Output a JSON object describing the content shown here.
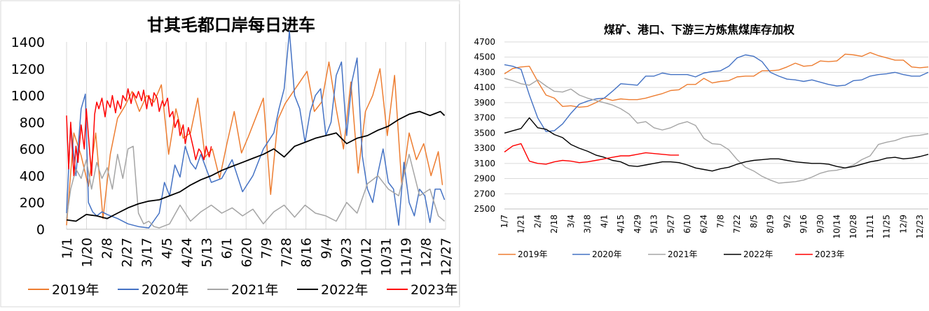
{
  "chart_data": [
    {
      "type": "line",
      "title": "甘其毛都口岸每日进车",
      "xlabel": "",
      "ylabel": "",
      "ylim": [
        0,
        1400
      ],
      "yticks": [
        0,
        200,
        400,
        600,
        800,
        1000,
        1200,
        1400
      ],
      "xticks": [
        "1/1",
        "1/20",
        "2/8",
        "2/27",
        "3/17",
        "4/5",
        "4/24",
        "5/13",
        "6/1",
        "6/20",
        "7/9",
        "7/28",
        "8/16",
        "9/4",
        "9/23",
        "10/12",
        "10/31",
        "11/19",
        "12/8",
        "12/27"
      ],
      "grid": "vertical",
      "legend": "bottom",
      "series": [
        {
          "name": "2019年",
          "color": "#ED7D31",
          "x": [
            1,
            8,
            15,
            22,
            29,
            36,
            43,
            50,
            57,
            64,
            71,
            78,
            85,
            92,
            99,
            106,
            113,
            120,
            127,
            134,
            141,
            148,
            155,
            162,
            169,
            176,
            183,
            190,
            197,
            204,
            211,
            218,
            225,
            232,
            239,
            246,
            253,
            260,
            267,
            274,
            281,
            288,
            295,
            302,
            309,
            316,
            323,
            330,
            337,
            344,
            351,
            358,
            362
          ],
          "values": [
            30,
            720,
            550,
            320,
            720,
            80,
            560,
            830,
            920,
            1030,
            880,
            1000,
            950,
            1080,
            560,
            900,
            680,
            720,
            980,
            540,
            600,
            380,
            640,
            880,
            570,
            700,
            840,
            980,
            260,
            820,
            940,
            1020,
            1100,
            1180,
            880,
            950,
            1250,
            900,
            600,
            1100,
            420,
            880,
            1000,
            1200,
            700,
            1150,
            320,
            720,
            520,
            640,
            400,
            580,
            330
          ]
        },
        {
          "name": "2020年",
          "color": "#4472C4",
          "x": [
            1,
            5,
            10,
            15,
            19,
            22,
            26,
            30,
            35,
            40,
            50,
            60,
            70,
            80,
            90,
            95,
            100,
            105,
            110,
            115,
            120,
            125,
            130,
            140,
            150,
            160,
            170,
            180,
            190,
            200,
            205,
            210,
            215,
            220,
            225,
            230,
            235,
            240,
            245,
            250,
            255,
            260,
            265,
            270,
            275,
            280,
            285,
            290,
            295,
            300,
            305,
            310,
            315,
            320,
            325,
            330,
            335,
            340,
            345,
            350,
            355,
            360,
            364
          ],
          "values": [
            120,
            780,
            400,
            900,
            1010,
            200,
            130,
            100,
            130,
            110,
            80,
            40,
            20,
            10,
            120,
            350,
            250,
            480,
            390,
            620,
            500,
            450,
            560,
            350,
            380,
            520,
            280,
            400,
            600,
            720,
            900,
            1050,
            1480,
            1000,
            900,
            650,
            880,
            1000,
            1050,
            700,
            800,
            1150,
            1250,
            700,
            1100,
            1280,
            550,
            300,
            200,
            420,
            600,
            350,
            300,
            30,
            500,
            200,
            100,
            300,
            250,
            50,
            300,
            300,
            220
          ]
        },
        {
          "name": "2021年",
          "color": "#A5A5A5",
          "x": [
            1,
            5,
            10,
            15,
            20,
            25,
            30,
            35,
            40,
            45,
            50,
            55,
            60,
            65,
            70,
            75,
            80,
            85,
            90,
            100,
            110,
            120,
            130,
            140,
            150,
            160,
            170,
            180,
            190,
            200,
            210,
            220,
            230,
            240,
            250,
            260,
            270,
            280,
            290,
            300,
            310,
            320,
            330,
            340,
            350,
            358,
            364
          ],
          "values": [
            80,
            300,
            450,
            380,
            520,
            300,
            500,
            380,
            460,
            300,
            560,
            380,
            600,
            620,
            120,
            40,
            60,
            20,
            10,
            40,
            180,
            60,
            130,
            180,
            120,
            160,
            100,
            150,
            40,
            130,
            180,
            90,
            180,
            120,
            100,
            60,
            200,
            120,
            340,
            400,
            300,
            250,
            560,
            250,
            300,
            100,
            60
          ]
        },
        {
          "name": "2022年",
          "color": "#000000",
          "x": [
            1,
            10,
            20,
            30,
            40,
            50,
            60,
            70,
            80,
            90,
            100,
            110,
            120,
            130,
            140,
            150,
            160,
            170,
            180,
            190,
            200,
            210,
            220,
            230,
            240,
            250,
            260,
            270,
            280,
            290,
            300,
            310,
            320,
            330,
            340,
            350,
            360,
            364
          ],
          "values": [
            70,
            60,
            110,
            100,
            80,
            120,
            160,
            190,
            210,
            220,
            250,
            280,
            330,
            370,
            400,
            440,
            470,
            500,
            530,
            560,
            600,
            540,
            620,
            650,
            680,
            700,
            720,
            640,
            680,
            700,
            740,
            770,
            820,
            860,
            880,
            850,
            880,
            850
          ]
        },
        {
          "name": "2023年",
          "color": "#FF0000",
          "x": [
            1,
            3,
            5,
            8,
            10,
            12,
            15,
            18,
            20,
            22,
            25,
            28,
            30,
            32,
            35,
            38,
            40,
            43,
            45,
            48,
            50,
            53,
            55,
            58,
            60,
            63,
            65,
            68,
            70,
            73,
            75,
            78,
            80,
            83,
            85,
            88,
            90,
            93,
            95,
            98,
            100,
            103,
            105,
            108,
            110,
            113,
            115,
            118,
            120,
            123,
            125,
            128,
            130,
            133,
            135,
            138,
            140
          ],
          "values": [
            850,
            450,
            800,
            400,
            620,
            500,
            780,
            600,
            900,
            700,
            400,
            860,
            950,
            900,
            980,
            840,
            960,
            910,
            1000,
            870,
            960,
            900,
            1000,
            960,
            1050,
            940,
            1020,
            980,
            1030,
            960,
            1040,
            900,
            1000,
            920,
            1020,
            980,
            880,
            960,
            920,
            980,
            840,
            880,
            760,
            820,
            700,
            780,
            640,
            760,
            700,
            600,
            520,
            600,
            580,
            520,
            620,
            540,
            620
          ]
        }
      ]
    },
    {
      "type": "line",
      "title": "煤矿、港口、下游三方炼焦煤库存加权",
      "xlabel": "",
      "ylabel": "",
      "ylim": [
        2500,
        4700
      ],
      "yticks": [
        2500,
        2700,
        2900,
        3100,
        3300,
        3500,
        3700,
        3900,
        4100,
        4300,
        4500,
        4700
      ],
      "xticks": [
        "1/7",
        "1/21",
        "2/4",
        "2/18",
        "3/4",
        "3/18",
        "4/1",
        "4/15",
        "4/29",
        "5/13",
        "5/27",
        "6/10",
        "6/24",
        "7/8",
        "7/22",
        "8/5",
        "8/19",
        "9/2",
        "9/16",
        "9/30",
        "10/14",
        "10/28",
        "11/11",
        "11/25",
        "12/9",
        "12/23"
      ],
      "grid": "horizontal",
      "legend": "bottom",
      "series": [
        {
          "name": "2019年",
          "color": "#ED7D31",
          "x": [
            0,
            1,
            2,
            3,
            4,
            5,
            6,
            7,
            8,
            9,
            10,
            11,
            12,
            13,
            14,
            15,
            16,
            17,
            18,
            19,
            20,
            21,
            22,
            23,
            24,
            25,
            26,
            27,
            28,
            29,
            30,
            31,
            32,
            33,
            34,
            35,
            36,
            37,
            38,
            39,
            40,
            41,
            42,
            43,
            44,
            45,
            46,
            47,
            48,
            49,
            50,
            51
          ],
          "values": [
            4280,
            4350,
            4370,
            4380,
            4180,
            4000,
            3960,
            3850,
            3860,
            3840,
            3850,
            3900,
            3960,
            3930,
            3950,
            3940,
            3940,
            3960,
            3990,
            4020,
            4060,
            4070,
            4140,
            4140,
            4220,
            4160,
            4180,
            4190,
            4240,
            4250,
            4250,
            4320,
            4320,
            4330,
            4370,
            4420,
            4380,
            4390,
            4450,
            4440,
            4450,
            4540,
            4530,
            4510,
            4560,
            4520,
            4490,
            4460,
            4460,
            4370,
            4360,
            4370
          ]
        },
        {
          "name": "2020年",
          "color": "#4472C4",
          "x": [
            0,
            1,
            2,
            3,
            4,
            5,
            6,
            7,
            8,
            9,
            10,
            11,
            12,
            13,
            14,
            15,
            16,
            17,
            18,
            19,
            20,
            21,
            22,
            23,
            24,
            25,
            26,
            27,
            28,
            29,
            30,
            31,
            32,
            33,
            34,
            35,
            36,
            37,
            38,
            39,
            40,
            41,
            42,
            43,
            44,
            45,
            46,
            47,
            48,
            49,
            50,
            51
          ],
          "values": [
            4400,
            4380,
            4340,
            4000,
            3700,
            3520,
            3530,
            3620,
            3760,
            3880,
            3920,
            3950,
            3960,
            4050,
            4150,
            4140,
            4130,
            4250,
            4250,
            4290,
            4270,
            4270,
            4270,
            4240,
            4290,
            4310,
            4320,
            4380,
            4490,
            4530,
            4510,
            4440,
            4300,
            4250,
            4210,
            4200,
            4180,
            4200,
            4170,
            4140,
            4120,
            4130,
            4190,
            4200,
            4250,
            4270,
            4280,
            4300,
            4270,
            4250,
            4250,
            4300
          ]
        },
        {
          "name": "2021年",
          "color": "#A5A5A5",
          "x": [
            0,
            1,
            2,
            3,
            4,
            5,
            6,
            7,
            8,
            9,
            10,
            11,
            12,
            13,
            14,
            15,
            16,
            17,
            18,
            19,
            20,
            21,
            22,
            23,
            24,
            25,
            26,
            27,
            28,
            29,
            30,
            31,
            32,
            33,
            34,
            35,
            36,
            37,
            38,
            39,
            40,
            41,
            42,
            43,
            44,
            45,
            46,
            47,
            48,
            49,
            50,
            51
          ],
          "values": [
            4220,
            4190,
            4150,
            4130,
            4200,
            4120,
            4050,
            4040,
            4080,
            4000,
            3960,
            3930,
            3900,
            3870,
            3820,
            3750,
            3630,
            3650,
            3570,
            3540,
            3570,
            3620,
            3650,
            3600,
            3430,
            3360,
            3350,
            3280,
            3150,
            3050,
            3000,
            2930,
            2880,
            2840,
            2850,
            2860,
            2880,
            2920,
            2970,
            3000,
            3010,
            3040,
            3080,
            3150,
            3200,
            3350,
            3380,
            3400,
            3440,
            3460,
            3470,
            3490
          ]
        },
        {
          "name": "2022年",
          "color": "#000000",
          "x": [
            0,
            1,
            2,
            3,
            4,
            5,
            6,
            7,
            8,
            9,
            10,
            11,
            12,
            13,
            14,
            15,
            16,
            17,
            18,
            19,
            20,
            21,
            22,
            23,
            24,
            25,
            26,
            27,
            28,
            29,
            30,
            31,
            32,
            33,
            34,
            35,
            36,
            37,
            38,
            39,
            40,
            41,
            42,
            43,
            44,
            45,
            46,
            47,
            48,
            49,
            50,
            51
          ],
          "values": [
            3500,
            3530,
            3560,
            3700,
            3570,
            3550,
            3480,
            3440,
            3350,
            3300,
            3260,
            3210,
            3180,
            3140,
            3120,
            3070,
            3060,
            3080,
            3100,
            3120,
            3120,
            3110,
            3080,
            3040,
            3020,
            3000,
            3030,
            3050,
            3090,
            3120,
            3140,
            3150,
            3160,
            3160,
            3140,
            3120,
            3110,
            3100,
            3100,
            3090,
            3060,
            3040,
            3060,
            3090,
            3120,
            3140,
            3170,
            3180,
            3160,
            3170,
            3190,
            3220
          ]
        },
        {
          "name": "2023年",
          "color": "#FF0000",
          "x": [
            0,
            1,
            2,
            3,
            4,
            5,
            6,
            7,
            8,
            9,
            10,
            11,
            12,
            13,
            14,
            15,
            16,
            17,
            18,
            19,
            20,
            21
          ],
          "values": [
            3250,
            3330,
            3360,
            3130,
            3100,
            3090,
            3120,
            3140,
            3130,
            3110,
            3120,
            3140,
            3160,
            3180,
            3200,
            3200,
            3220,
            3240,
            3230,
            3220,
            3210,
            3210
          ]
        }
      ]
    }
  ]
}
